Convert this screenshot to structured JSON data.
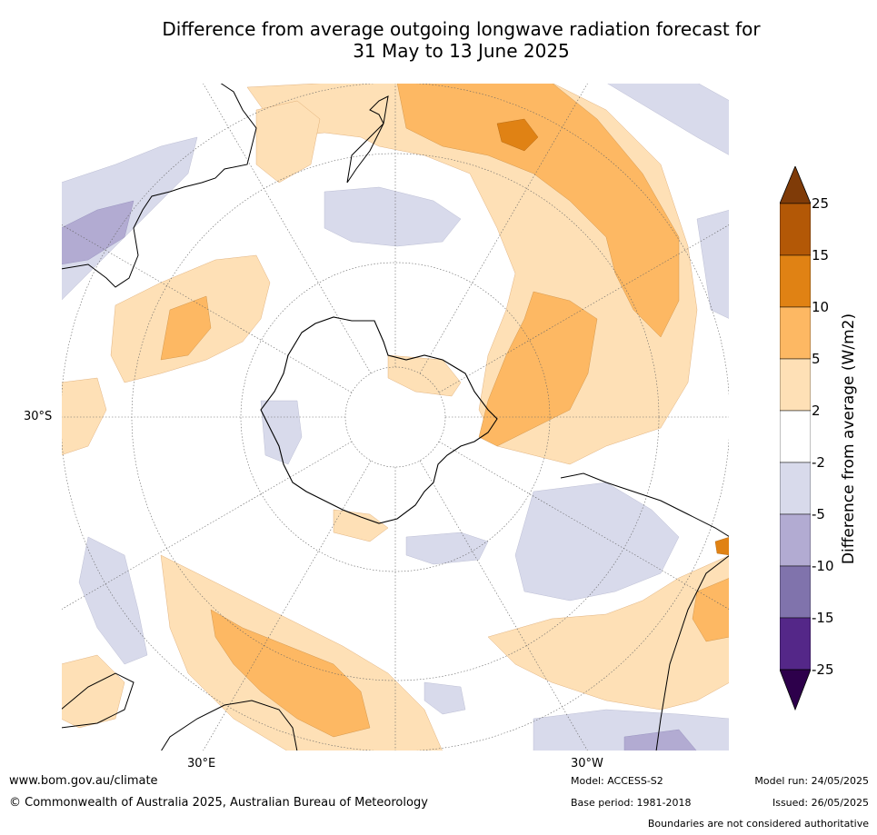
{
  "title_line1": "Difference from average outgoing longwave radiation forecast for",
  "title_line2": "31 May to 13 June 2025",
  "map": {
    "projection": "south-polar-stereographic",
    "lat_label": "30°S",
    "lon_labels": {
      "left": "30°E",
      "right": "30°W"
    },
    "landmasses": [
      "Antarctica",
      "Australia",
      "New Zealand",
      "South America",
      "Africa"
    ]
  },
  "colorbar": {
    "title": "Difference from average (W/m2)",
    "ticks": [
      "25",
      "15",
      "10",
      "5",
      "2",
      "-2",
      "-5",
      "-10",
      "-15",
      "-25"
    ],
    "colors": {
      "gt25": "#7f3b08",
      "15_25": "#b35806",
      "10_15": "#e08214",
      "5_10": "#fdb863",
      "2_5": "#fee0b6",
      "neutral": "#ffffff",
      "m2_m5": "#d8daeb",
      "m5_m10": "#b2abd2",
      "m10_m15": "#8073ac",
      "m15_m25": "#542788",
      "lt_m25": "#2d004b"
    }
  },
  "footer": {
    "website": "www.bom.gov.au/climate",
    "copyright": "© Commonwealth of Australia 2025, Australian Bureau of Meteorology",
    "model": "Model: ACCESS-S2",
    "base_period": "Base period: 1981-2018",
    "model_run": "Model run: 24/05/2025",
    "issued": "Issued: 26/05/2025",
    "disclaimer": "Boundaries are not considered authoritative"
  }
}
